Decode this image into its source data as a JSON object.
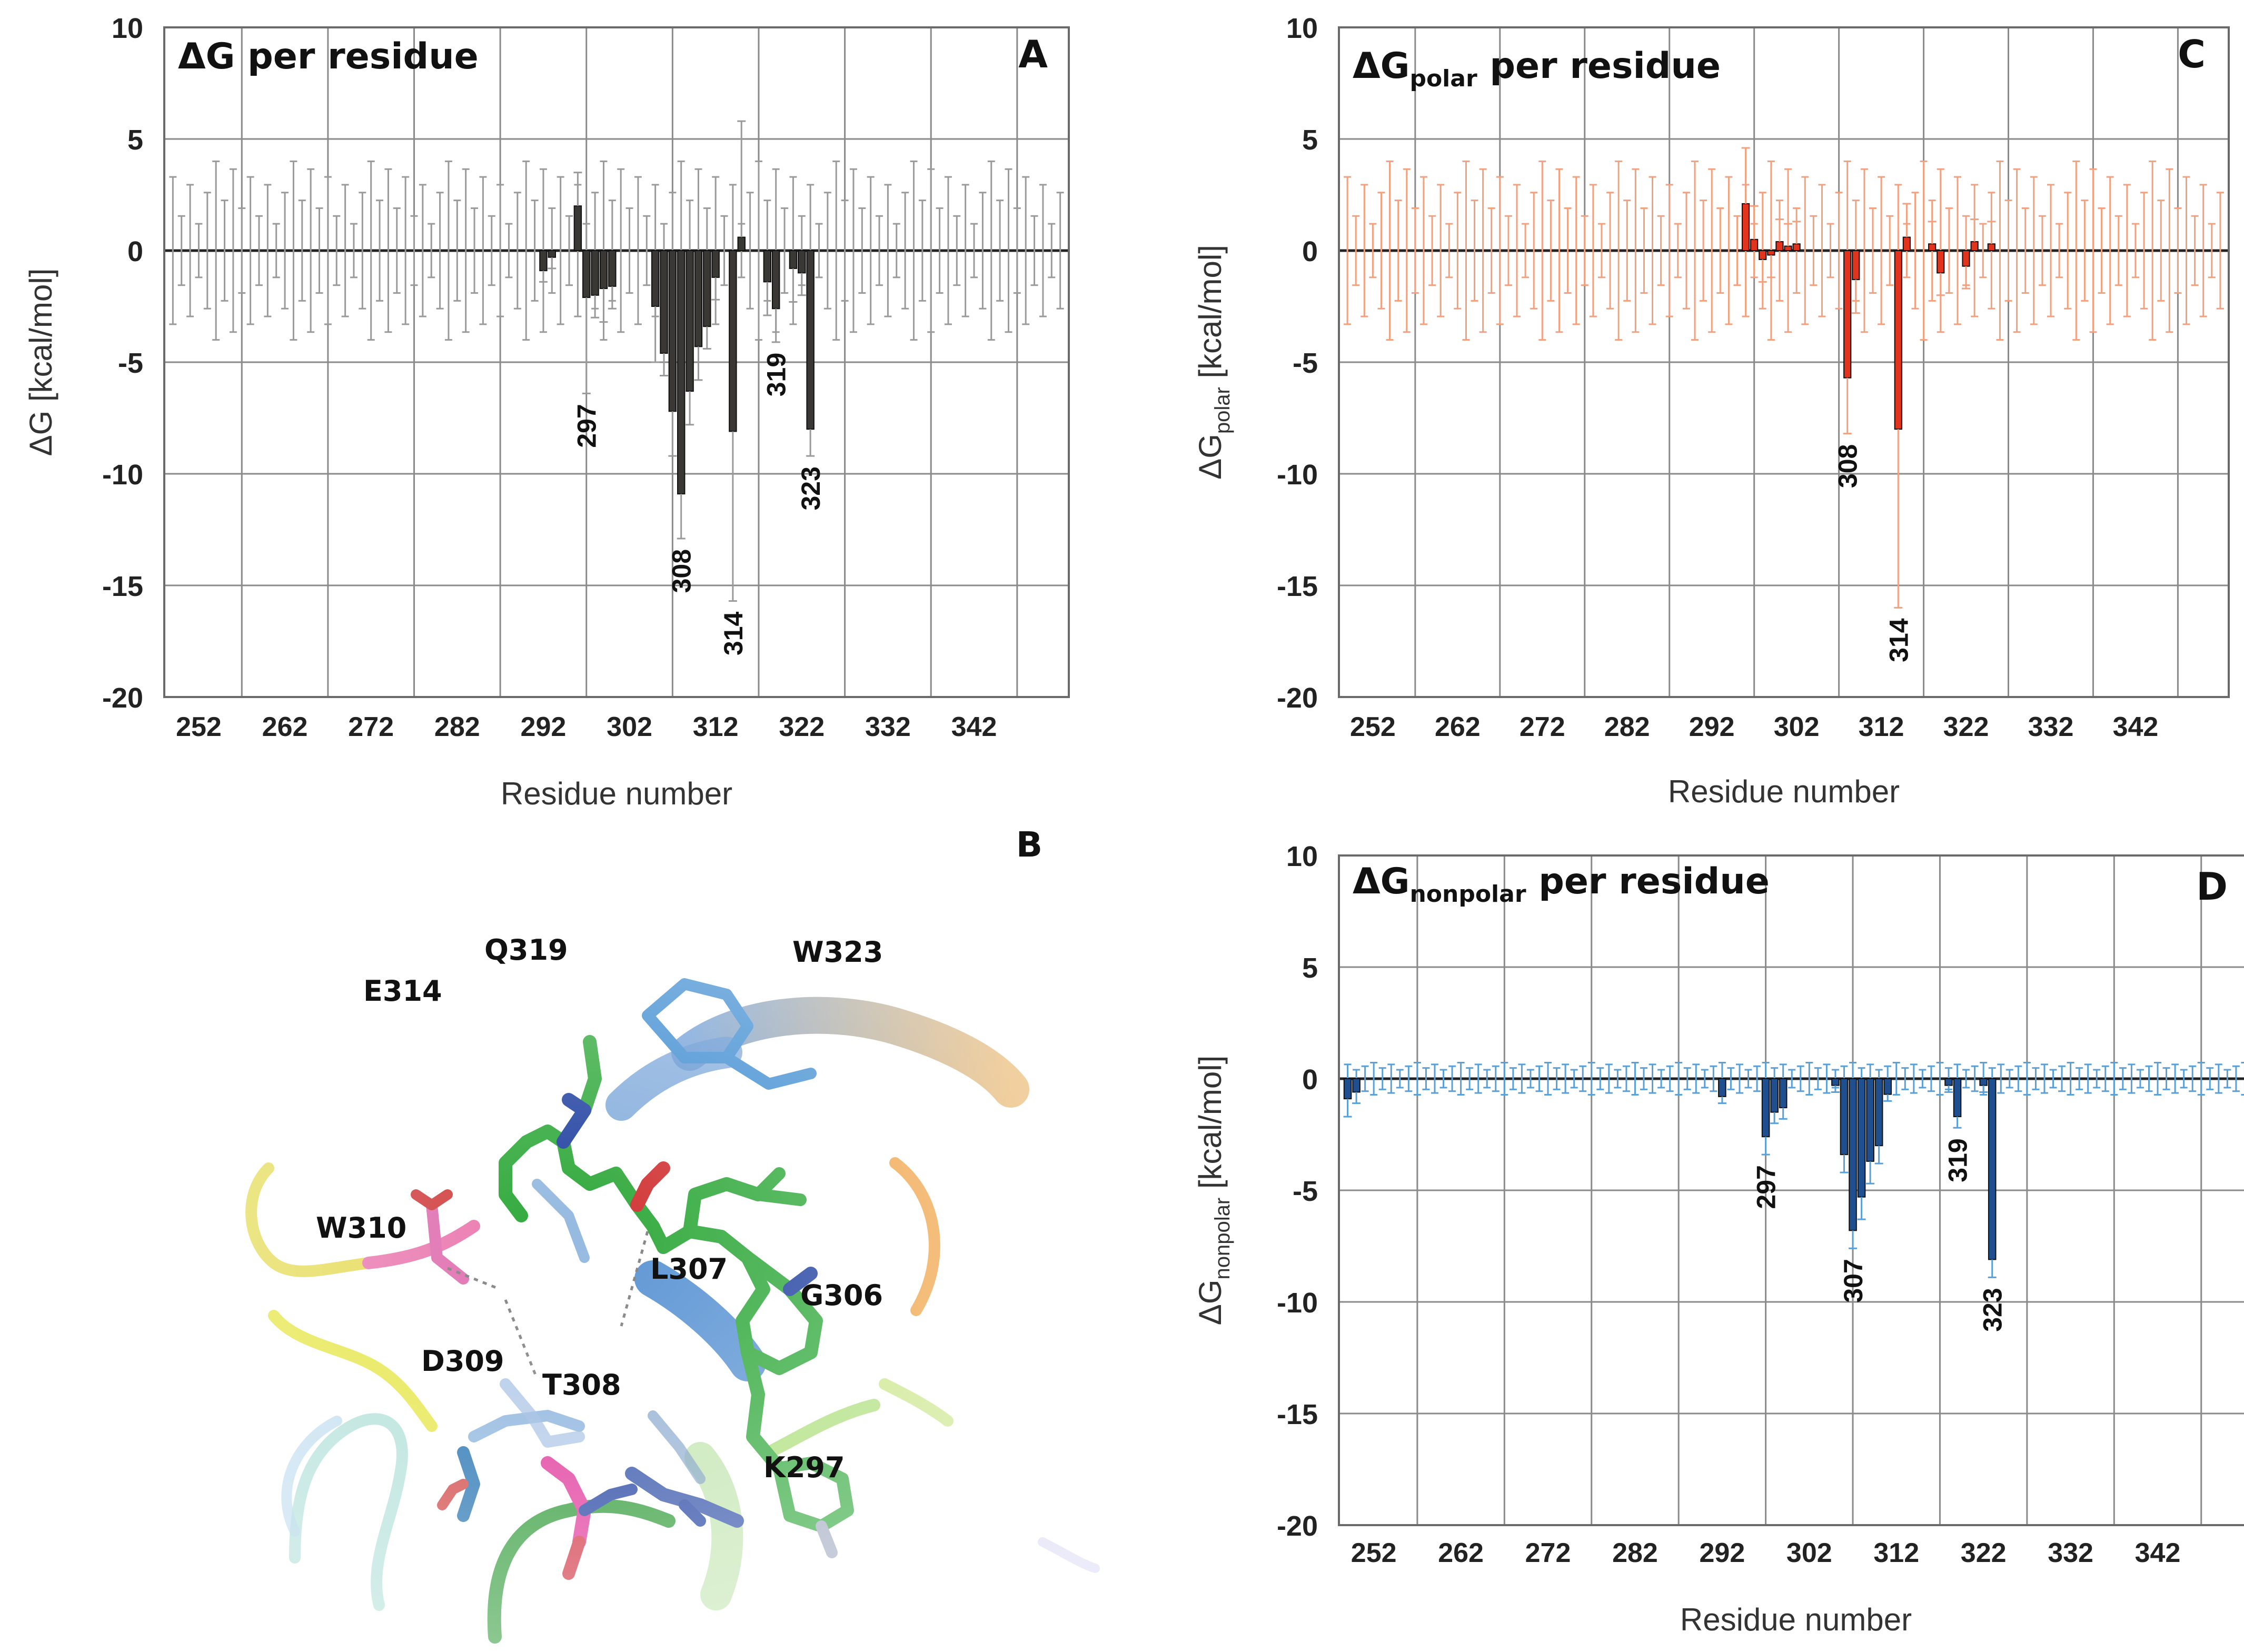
{
  "figure": {
    "panel_a": {
      "letter": "A",
      "title": "ΔG per residue",
      "ylabel": "ΔG [kcal/mol]",
      "xlabel": "Residue number",
      "y_ticks": [
        "10",
        "5",
        "0",
        "-5",
        "-10",
        "-15",
        "-20"
      ],
      "x_ticks": [
        "252",
        "262",
        "272",
        "282",
        "292",
        "302",
        "312",
        "322",
        "332",
        "342"
      ],
      "annotations": [
        "297",
        "308",
        "314",
        "319",
        "323"
      ]
    },
    "panel_c": {
      "letter": "C",
      "title_main": "ΔG",
      "title_sub": "polar",
      "title_rest": " per residue",
      "ylabel_main": "ΔG",
      "ylabel_sub": "polar",
      "ylabel_rest": " [kcal/mol]",
      "xlabel": "Residue number",
      "y_ticks": [
        "10",
        "5",
        "0",
        "-5",
        "-10",
        "-15",
        "-20"
      ],
      "x_ticks": [
        "252",
        "262",
        "272",
        "282",
        "292",
        "302",
        "312",
        "322",
        "332",
        "342"
      ],
      "annotations": [
        "308",
        "314"
      ]
    },
    "panel_d": {
      "letter": "D",
      "title_main": "ΔG",
      "title_sub": "nonpolar",
      "title_rest": " per residue",
      "ylabel_main": "ΔG",
      "ylabel_sub": "nonpolar",
      "ylabel_rest": " [kcal/mol]",
      "xlabel": "Residue number",
      "y_ticks": [
        "10",
        "5",
        "0",
        "-5",
        "-10",
        "-15",
        "-20"
      ],
      "x_ticks": [
        "252",
        "262",
        "272",
        "282",
        "292",
        "302",
        "312",
        "322",
        "332",
        "342"
      ],
      "annotations": [
        "297",
        "307",
        "319",
        "323"
      ]
    },
    "panel_b": {
      "letter": "B",
      "labels": [
        "Q319",
        "W323",
        "E314",
        "W310",
        "L307",
        "G306",
        "D309",
        "T308",
        "K297"
      ]
    }
  },
  "chart_data": [
    {
      "type": "bar",
      "title": "ΔG per residue",
      "xlabel": "Residue number",
      "ylabel": "ΔG [kcal/mol]",
      "ylim": [
        -20,
        10
      ],
      "xlim": [
        248,
        353
      ],
      "color": "#3a3834",
      "error_color": "#9a9a9a",
      "x": [
        297,
        298,
        299,
        300,
        305,
        306,
        307,
        308,
        309,
        310,
        311,
        312,
        314,
        315,
        318,
        319,
        321,
        322,
        323,
        292,
        293
      ],
      "values": [
        -2.1,
        -2.0,
        -1.7,
        -1.6,
        -2.5,
        -4.6,
        -7.2,
        -10.9,
        -6.3,
        -4.3,
        -3.4,
        -1.2,
        -8.1,
        0.6,
        -1.4,
        -2.6,
        -0.8,
        -1.0,
        -8.0,
        -0.9,
        -0.3
      ],
      "special_bars": [
        {
          "x": 296,
          "value": 2.0
        }
      ],
      "errors": [
        4.3,
        1.0,
        1.5,
        1.0,
        2.5,
        1.0,
        2.0,
        2.0,
        1.5,
        1.5,
        1.0,
        1.0,
        7.6,
        5.2,
        1.5,
        1.5,
        1.5,
        1.0,
        1.2,
        0.5,
        0.5
      ],
      "annotations": [
        {
          "label": "297",
          "x": 297
        },
        {
          "label": "308",
          "x": 308
        },
        {
          "label": "314",
          "x": 314
        },
        {
          "label": "319",
          "x": 319
        },
        {
          "label": "323",
          "x": 323
        }
      ]
    },
    {
      "type": "bar",
      "title": "ΔGpolar per residue",
      "xlabel": "Residue number",
      "ylabel": "ΔGpolar [kcal/mol]",
      "ylim": [
        -20,
        10
      ],
      "xlim": [
        248,
        353
      ],
      "color": "#e2331d",
      "error_color": "#f2a07e",
      "x": [
        296,
        297,
        298,
        299,
        300,
        301,
        302,
        308,
        309,
        314,
        315,
        318,
        319,
        322,
        323,
        325
      ],
      "values": [
        2.1,
        0.5,
        -0.4,
        -0.2,
        0.4,
        0.2,
        0.3,
        -5.7,
        -1.3,
        -8.0,
        0.6,
        0.3,
        -1.0,
        -0.7,
        0.4,
        0.3
      ],
      "errors": [
        2.5,
        1.5,
        1.0,
        1.0,
        1.0,
        1.0,
        1.0,
        2.5,
        1.5,
        8.0,
        1.5,
        1.0,
        1.0,
        1.0,
        1.0,
        1.0
      ],
      "annotations": [
        {
          "label": "308",
          "x": 308
        },
        {
          "label": "314",
          "x": 314
        }
      ]
    },
    {
      "type": "bar",
      "title": "ΔGnonpolar per residue",
      "xlabel": "Residue number",
      "ylabel": "ΔGnonpolar [kcal/mol]",
      "ylim": [
        -20,
        10
      ],
      "xlim": [
        248,
        353
      ],
      "color": "#1f4f8f",
      "error_color": "#5aa0d8",
      "x": [
        249,
        250,
        292,
        297,
        298,
        299,
        305,
        306,
        307,
        308,
        309,
        310,
        311,
        318,
        319,
        322,
        323
      ],
      "values": [
        -0.9,
        -0.6,
        -0.8,
        -2.6,
        -1.5,
        -1.3,
        -0.3,
        -3.4,
        -6.8,
        -5.3,
        -3.7,
        -3.0,
        -0.7,
        -0.3,
        -1.7,
        -0.3,
        -8.1
      ],
      "errors": [
        0.8,
        0.5,
        0.3,
        0.8,
        0.5,
        0.5,
        0.3,
        0.8,
        0.8,
        1.0,
        1.0,
        0.8,
        0.3,
        0.3,
        0.5,
        0.3,
        0.8
      ],
      "annotations": [
        {
          "label": "297",
          "x": 297
        },
        {
          "label": "307",
          "x": 307
        },
        {
          "label": "319",
          "x": 319
        },
        {
          "label": "323",
          "x": 323
        }
      ]
    }
  ]
}
